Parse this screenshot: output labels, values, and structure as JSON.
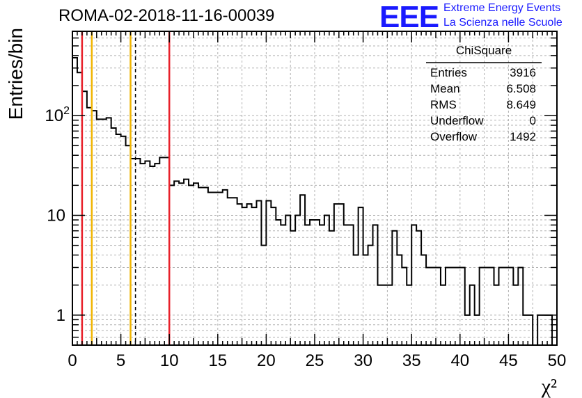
{
  "header": {
    "title": "ROMA-02-2018-11-16-00039",
    "logo_text": "EEE",
    "logo_line1": "Extreme Energy Events",
    "logo_line2": "La Scienza nelle Scuole"
  },
  "stats_box": {
    "title": "ChiSquare",
    "rows": [
      {
        "label": "Entries",
        "value": "3916"
      },
      {
        "label": "Mean",
        "value": "6.508"
      },
      {
        "label": "RMS",
        "value": "8.649"
      },
      {
        "label": "Underflow",
        "value": "0"
      },
      {
        "label": "Overflow",
        "value": "1492"
      }
    ]
  },
  "colors": {
    "histogram": "#000000",
    "red_lines": "#e8202a",
    "yellow_lines": "#f0b400",
    "mean_line": "#000000",
    "grid": "#b0b0b0",
    "logo": "#1a1aff"
  },
  "chart_data": {
    "type": "histogram",
    "ylabel": "Entries/bin",
    "xlabel": "χ²",
    "xlim": [
      0,
      50
    ],
    "ylim": [
      0.5,
      700
    ],
    "yscale": "log",
    "grid": true,
    "bin_width": 0.5,
    "x_ticks": [
      "0",
      "5",
      "10",
      "15",
      "20",
      "25",
      "30",
      "35",
      "40",
      "45",
      "50"
    ],
    "y_ticks": [
      {
        "value": 1,
        "label": "1"
      },
      {
        "value": 10,
        "label": "10"
      },
      {
        "value": 100,
        "label": "10",
        "sup": "2"
      }
    ],
    "values": [
      380,
      270,
      175,
      120,
      112,
      92,
      92,
      95,
      75,
      65,
      62,
      50,
      37,
      37,
      33,
      35,
      31,
      33,
      38,
      38,
      20,
      22,
      21,
      23,
      20,
      21,
      19,
      19,
      17,
      17,
      17,
      18,
      15,
      15,
      13,
      12,
      13,
      12,
      14,
      5,
      14,
      12,
      9,
      8,
      10,
      7,
      10,
      16,
      8,
      9,
      9,
      8,
      10,
      7,
      13,
      13,
      8,
      8,
      4,
      12,
      4,
      5,
      8,
      2,
      2,
      2,
      7,
      4,
      3,
      2,
      8,
      7,
      4,
      3,
      3,
      3,
      2,
      3,
      3,
      3,
      3,
      1,
      2,
      1,
      3,
      3,
      3,
      2,
      3,
      3,
      3,
      2,
      3,
      1,
      1,
      0.5,
      1,
      1,
      1,
      0.5
    ],
    "vertical_lines": [
      {
        "x": 1,
        "kind": "red"
      },
      {
        "x": 2,
        "kind": "yellow"
      },
      {
        "x": 6,
        "kind": "yellow"
      },
      {
        "x": 6.508,
        "kind": "mean"
      },
      {
        "x": 10,
        "kind": "red"
      }
    ]
  }
}
